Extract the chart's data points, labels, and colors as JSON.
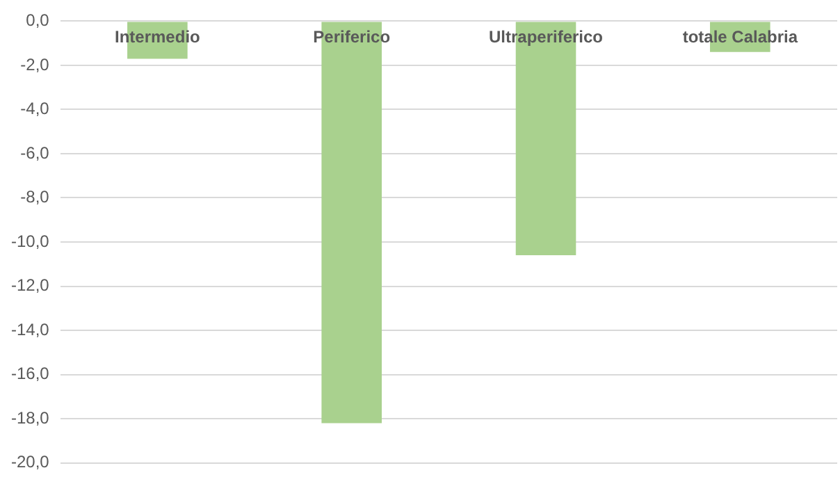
{
  "chart_data": {
    "type": "bar",
    "categories": [
      "Intermedio",
      "Periferico",
      "Ultraperiferico",
      "totale Calabria"
    ],
    "values": [
      -1.7,
      -18.2,
      -10.6,
      -1.4
    ],
    "color": "#a9d18e",
    "ylim": [
      -20,
      0
    ],
    "yticks": [
      {
        "value": 0,
        "label": "0,0"
      },
      {
        "value": -2,
        "label": "-2,0"
      },
      {
        "value": -4,
        "label": "-4,0"
      },
      {
        "value": -6,
        "label": "-6,0"
      },
      {
        "value": -8,
        "label": "-8,0"
      },
      {
        "value": -10,
        "label": "-10,0"
      },
      {
        "value": -12,
        "label": "-12,0"
      },
      {
        "value": -14,
        "label": "-14,0"
      },
      {
        "value": -16,
        "label": "-16,0"
      },
      {
        "value": -18,
        "label": "-18,0"
      },
      {
        "value": -20,
        "label": "-20,0"
      }
    ],
    "grid": "y",
    "legend": false
  }
}
